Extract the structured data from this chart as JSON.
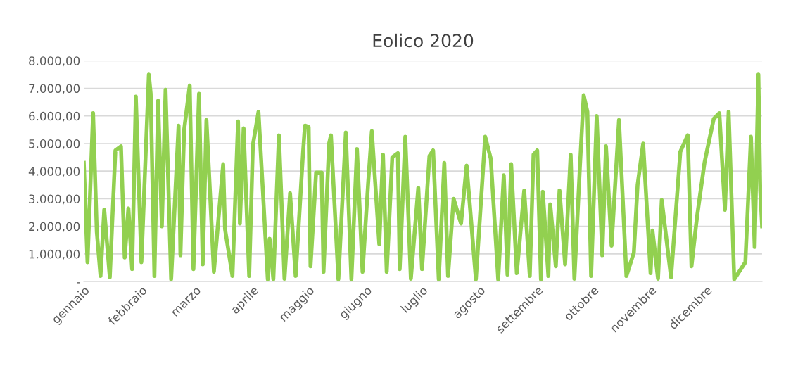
{
  "chart_data": {
    "type": "line",
    "title": "Eolico 2020",
    "xlim": [
      "2020-01-01",
      "2020-12-31"
    ],
    "xticks": [
      {
        "value": "2020-01-01",
        "label": "gennaio"
      },
      {
        "value": "2020-02-01",
        "label": "febbraio"
      },
      {
        "value": "2020-03-01",
        "label": "marzo"
      },
      {
        "value": "2020-04-01",
        "label": "aprile"
      },
      {
        "value": "2020-05-01",
        "label": "maggio"
      },
      {
        "value": "2020-06-01",
        "label": "giugno"
      },
      {
        "value": "2020-07-01",
        "label": "luglio"
      },
      {
        "value": "2020-08-01",
        "label": "agosto"
      },
      {
        "value": "2020-09-01",
        "label": "settembre"
      },
      {
        "value": "2020-10-01",
        "label": "ottobre"
      },
      {
        "value": "2020-11-01",
        "label": "novembre"
      },
      {
        "value": "2020-12-01",
        "label": "dicembre"
      }
    ],
    "ylim": [
      0,
      8000
    ],
    "yticks": [
      {
        "value": 0,
        "label": "-"
      },
      {
        "value": 1000,
        "label": "1.000,00"
      },
      {
        "value": 2000,
        "label": "2.000,00"
      },
      {
        "value": 3000,
        "label": "3.000,00"
      },
      {
        "value": 4000,
        "label": "4.000,00"
      },
      {
        "value": 5000,
        "label": "5.000,00"
      },
      {
        "value": 6000,
        "label": "6.000,00"
      },
      {
        "value": 7000,
        "label": "7.000,00"
      },
      {
        "value": 8000,
        "label": "8.000,00"
      }
    ],
    "grid": "y",
    "legend": false,
    "marker": "none",
    "line_style": "solid",
    "series": [
      {
        "color": "#92d050",
        "x": [
          "2020-01-01",
          "2020-01-03",
          "2020-01-06",
          "2020-01-08",
          "2020-01-10",
          "2020-01-12",
          "2020-01-15",
          "2020-01-18",
          "2020-01-21",
          "2020-01-23",
          "2020-01-25",
          "2020-01-27",
          "2020-01-29",
          "2020-02-01",
          "2020-02-05",
          "2020-02-06",
          "2020-02-08",
          "2020-02-10",
          "2020-02-12",
          "2020-02-14",
          "2020-02-17",
          "2020-02-21",
          "2020-02-22",
          "2020-02-24",
          "2020-02-27",
          "2020-02-29",
          "2020-03-03",
          "2020-03-05",
          "2020-03-07",
          "2020-03-11",
          "2020-03-16",
          "2020-03-17",
          "2020-03-21",
          "2020-03-24",
          "2020-03-25",
          "2020-03-27",
          "2020-03-30",
          "2020-04-01",
          "2020-04-04",
          "2020-04-09",
          "2020-04-10",
          "2020-04-12",
          "2020-04-15",
          "2020-04-18",
          "2020-04-21",
          "2020-04-24",
          "2020-04-28",
          "2020-04-29",
          "2020-05-01",
          "2020-05-02",
          "2020-05-05",
          "2020-05-08",
          "2020-05-09",
          "2020-05-12",
          "2020-05-13",
          "2020-05-17",
          "2020-05-21",
          "2020-05-24",
          "2020-05-27",
          "2020-05-30",
          "2020-06-02",
          "2020-06-04",
          "2020-06-08",
          "2020-06-10",
          "2020-06-12",
          "2020-06-15",
          "2020-06-18",
          "2020-06-19",
          "2020-06-22",
          "2020-06-25",
          "2020-06-29",
          "2020-07-01",
          "2020-07-05",
          "2020-07-07",
          "2020-07-10",
          "2020-07-13",
          "2020-07-15",
          "2020-07-18",
          "2020-07-22",
          "2020-07-25",
          "2020-07-30",
          "2020-08-04",
          "2020-08-07",
          "2020-08-11",
          "2020-08-14",
          "2020-08-16",
          "2020-08-18",
          "2020-08-21",
          "2020-08-25",
          "2020-08-28",
          "2020-08-30",
          "2020-09-01",
          "2020-09-03",
          "2020-09-04",
          "2020-09-07",
          "2020-09-08",
          "2020-09-11",
          "2020-09-13",
          "2020-09-16",
          "2020-09-19",
          "2020-09-21",
          "2020-09-24",
          "2020-09-26",
          "2020-09-28",
          "2020-09-30",
          "2020-10-03",
          "2020-10-06",
          "2020-10-08",
          "2020-10-11",
          "2020-10-15",
          "2020-10-19",
          "2020-10-23",
          "2020-10-25",
          "2020-10-28",
          "2020-11-01",
          "2020-11-02",
          "2020-11-05",
          "2020-11-07",
          "2020-11-12",
          "2020-11-17",
          "2020-11-21",
          "2020-11-23",
          "2020-11-26",
          "2020-11-30",
          "2020-12-02",
          "2020-12-05",
          "2020-12-08",
          "2020-12-11",
          "2020-12-13",
          "2020-12-16",
          "2020-12-22",
          "2020-12-25",
          "2020-12-27",
          "2020-12-29",
          "2020-12-30",
          "2020-12-31"
        ],
        "values": [
          4300,
          700,
          6100,
          1800,
          200,
          2600,
          150,
          4750,
          4900,
          870,
          2650,
          450,
          6700,
          700,
          7500,
          6800,
          200,
          6550,
          2000,
          6950,
          80,
          5650,
          950,
          5500,
          7100,
          450,
          6800,
          620,
          5850,
          350,
          4250,
          1900,
          200,
          5800,
          2100,
          5550,
          200,
          4950,
          6150,
          80,
          1550,
          80,
          5300,
          100,
          3200,
          200,
          4700,
          5650,
          5600,
          550,
          3950,
          3950,
          350,
          5000,
          5300,
          80,
          5400,
          80,
          4800,
          350,
          3550,
          5450,
          1350,
          4600,
          350,
          4500,
          4650,
          450,
          5250,
          100,
          3400,
          450,
          4550,
          4750,
          80,
          4300,
          200,
          3000,
          2100,
          4200,
          80,
          5250,
          4450,
          80,
          3850,
          250,
          4250,
          300,
          3300,
          200,
          4600,
          4750,
          80,
          3250,
          200,
          2800,
          550,
          3300,
          620,
          4600,
          100,
          4200,
          6750,
          6150,
          200,
          6000,
          950,
          4900,
          1300,
          5850,
          200,
          1050,
          3500,
          5000,
          300,
          1850,
          100,
          2950,
          150,
          4700,
          5300,
          550,
          2350,
          4300,
          4950,
          5900,
          6100,
          2600,
          6150,
          80,
          700,
          5250,
          1250,
          7500,
          3300,
          2000
        ]
      }
    ]
  }
}
